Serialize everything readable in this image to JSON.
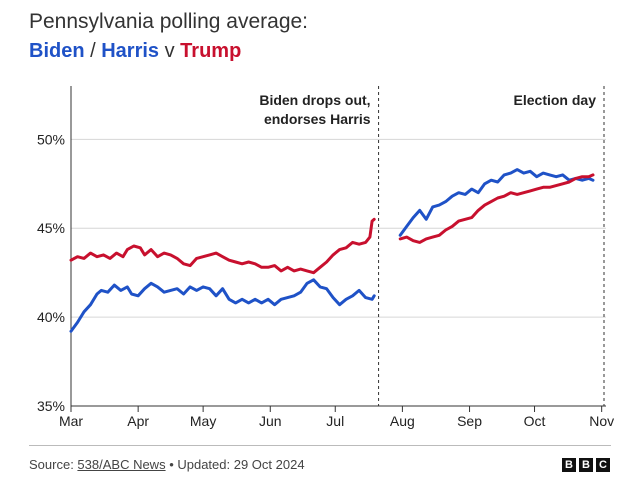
{
  "header": {
    "title": "Pennsylvania polling average:",
    "biden": "Biden",
    "slash": " / ",
    "harris": "Harris",
    "vs": " v ",
    "trump": "Trump"
  },
  "colors": {
    "dem": "#1f52c7",
    "rep": "#c8102e",
    "text": "#222222",
    "grid": "#d6d6d6"
  },
  "chart_data": {
    "type": "line",
    "y_ticks": [
      "50%",
      "45%",
      "40%",
      "35%"
    ],
    "y_tick_values": [
      50,
      45,
      40,
      35
    ],
    "ylim": [
      35,
      53
    ],
    "x_ticks": [
      "Mar",
      "Apr",
      "May",
      "Jun",
      "Jul",
      "Aug",
      "Sep",
      "Oct",
      "Nov"
    ],
    "x_tick_days": [
      0,
      31,
      61,
      92,
      122,
      153,
      184,
      214,
      245
    ],
    "xlim": [
      0,
      247
    ],
    "annotations": [
      {
        "day": 142,
        "line1": "Biden drops out,",
        "line2": "endorses Harris"
      },
      {
        "day": 249,
        "line1": "Election day",
        "line2": ""
      }
    ],
    "series": [
      {
        "name": "Biden",
        "color_key": "dem",
        "points": [
          [
            0,
            39.2
          ],
          [
            3,
            39.7
          ],
          [
            6,
            40.3
          ],
          [
            9,
            40.7
          ],
          [
            12,
            41.3
          ],
          [
            14,
            41.5
          ],
          [
            17,
            41.4
          ],
          [
            20,
            41.8
          ],
          [
            23,
            41.5
          ],
          [
            26,
            41.7
          ],
          [
            28,
            41.3
          ],
          [
            31,
            41.2
          ],
          [
            34,
            41.6
          ],
          [
            37,
            41.9
          ],
          [
            40,
            41.7
          ],
          [
            43,
            41.4
          ],
          [
            46,
            41.5
          ],
          [
            49,
            41.6
          ],
          [
            52,
            41.3
          ],
          [
            55,
            41.7
          ],
          [
            58,
            41.5
          ],
          [
            61,
            41.7
          ],
          [
            64,
            41.6
          ],
          [
            67,
            41.2
          ],
          [
            70,
            41.6
          ],
          [
            73,
            41.0
          ],
          [
            76,
            40.8
          ],
          [
            79,
            41.0
          ],
          [
            82,
            40.8
          ],
          [
            85,
            41.0
          ],
          [
            88,
            40.8
          ],
          [
            91,
            41.0
          ],
          [
            94,
            40.7
          ],
          [
            97,
            41.0
          ],
          [
            100,
            41.1
          ],
          [
            103,
            41.2
          ],
          [
            106,
            41.4
          ],
          [
            109,
            41.9
          ],
          [
            112,
            42.1
          ],
          [
            115,
            41.7
          ],
          [
            118,
            41.6
          ],
          [
            121,
            41.1
          ],
          [
            124,
            40.7
          ],
          [
            127,
            41.0
          ],
          [
            130,
            41.2
          ],
          [
            133,
            41.5
          ],
          [
            136,
            41.1
          ],
          [
            139,
            41.0
          ],
          [
            140,
            41.2
          ]
        ]
      },
      {
        "name": "Harris",
        "color_key": "dem",
        "points": [
          [
            152,
            44.6
          ],
          [
            155,
            45.1
          ],
          [
            158,
            45.6
          ],
          [
            161,
            46.0
          ],
          [
            164,
            45.5
          ],
          [
            167,
            46.2
          ],
          [
            170,
            46.3
          ],
          [
            173,
            46.5
          ],
          [
            176,
            46.8
          ],
          [
            179,
            47.0
          ],
          [
            182,
            46.9
          ],
          [
            185,
            47.2
          ],
          [
            188,
            47.0
          ],
          [
            191,
            47.5
          ],
          [
            194,
            47.7
          ],
          [
            197,
            47.6
          ],
          [
            200,
            48.0
          ],
          [
            203,
            48.1
          ],
          [
            206,
            48.3
          ],
          [
            209,
            48.1
          ],
          [
            212,
            48.2
          ],
          [
            215,
            47.9
          ],
          [
            218,
            48.1
          ],
          [
            221,
            48.0
          ],
          [
            224,
            47.9
          ],
          [
            227,
            48.0
          ],
          [
            230,
            47.7
          ],
          [
            233,
            47.8
          ],
          [
            236,
            47.7
          ],
          [
            239,
            47.8
          ],
          [
            241,
            47.7
          ]
        ]
      },
      {
        "name": "Trump",
        "color_key": "rep",
        "points": [
          [
            0,
            43.2
          ],
          [
            3,
            43.4
          ],
          [
            6,
            43.3
          ],
          [
            9,
            43.6
          ],
          [
            12,
            43.4
          ],
          [
            15,
            43.5
          ],
          [
            18,
            43.3
          ],
          [
            21,
            43.6
          ],
          [
            24,
            43.4
          ],
          [
            26,
            43.8
          ],
          [
            29,
            44.0
          ],
          [
            32,
            43.9
          ],
          [
            34,
            43.5
          ],
          [
            37,
            43.8
          ],
          [
            40,
            43.4
          ],
          [
            43,
            43.6
          ],
          [
            46,
            43.5
          ],
          [
            49,
            43.3
          ],
          [
            52,
            43.0
          ],
          [
            55,
            42.9
          ],
          [
            58,
            43.3
          ],
          [
            61,
            43.4
          ],
          [
            64,
            43.5
          ],
          [
            67,
            43.6
          ],
          [
            70,
            43.4
          ],
          [
            73,
            43.2
          ],
          [
            76,
            43.1
          ],
          [
            79,
            43.0
          ],
          [
            82,
            43.1
          ],
          [
            85,
            43.0
          ],
          [
            88,
            42.8
          ],
          [
            91,
            42.8
          ],
          [
            94,
            42.9
          ],
          [
            97,
            42.6
          ],
          [
            100,
            42.8
          ],
          [
            103,
            42.6
          ],
          [
            106,
            42.7
          ],
          [
            109,
            42.6
          ],
          [
            112,
            42.5
          ],
          [
            115,
            42.8
          ],
          [
            118,
            43.1
          ],
          [
            121,
            43.5
          ],
          [
            124,
            43.8
          ],
          [
            127,
            43.9
          ],
          [
            130,
            44.2
          ],
          [
            133,
            44.1
          ],
          [
            136,
            44.2
          ],
          [
            138,
            44.5
          ],
          [
            139,
            45.4
          ],
          [
            140,
            45.5
          ]
        ]
      },
      {
        "name": "Trump (post)",
        "color_key": "rep",
        "points": [
          [
            152,
            44.4
          ],
          [
            155,
            44.5
          ],
          [
            158,
            44.3
          ],
          [
            161,
            44.2
          ],
          [
            164,
            44.4
          ],
          [
            167,
            44.5
          ],
          [
            170,
            44.6
          ],
          [
            173,
            44.9
          ],
          [
            176,
            45.1
          ],
          [
            179,
            45.4
          ],
          [
            182,
            45.5
          ],
          [
            185,
            45.6
          ],
          [
            188,
            46.0
          ],
          [
            191,
            46.3
          ],
          [
            194,
            46.5
          ],
          [
            197,
            46.7
          ],
          [
            200,
            46.8
          ],
          [
            203,
            47.0
          ],
          [
            206,
            46.9
          ],
          [
            209,
            47.0
          ],
          [
            212,
            47.1
          ],
          [
            215,
            47.2
          ],
          [
            218,
            47.3
          ],
          [
            221,
            47.3
          ],
          [
            224,
            47.4
          ],
          [
            227,
            47.5
          ],
          [
            230,
            47.6
          ],
          [
            233,
            47.8
          ],
          [
            236,
            47.9
          ],
          [
            239,
            47.9
          ],
          [
            241,
            48.0
          ]
        ]
      }
    ]
  },
  "footer": {
    "source_label": "Source: ",
    "source_link": "538/ABC News",
    "updated": " • Updated: 29 Oct 2024",
    "logo_letters": [
      "B",
      "B",
      "C"
    ]
  }
}
